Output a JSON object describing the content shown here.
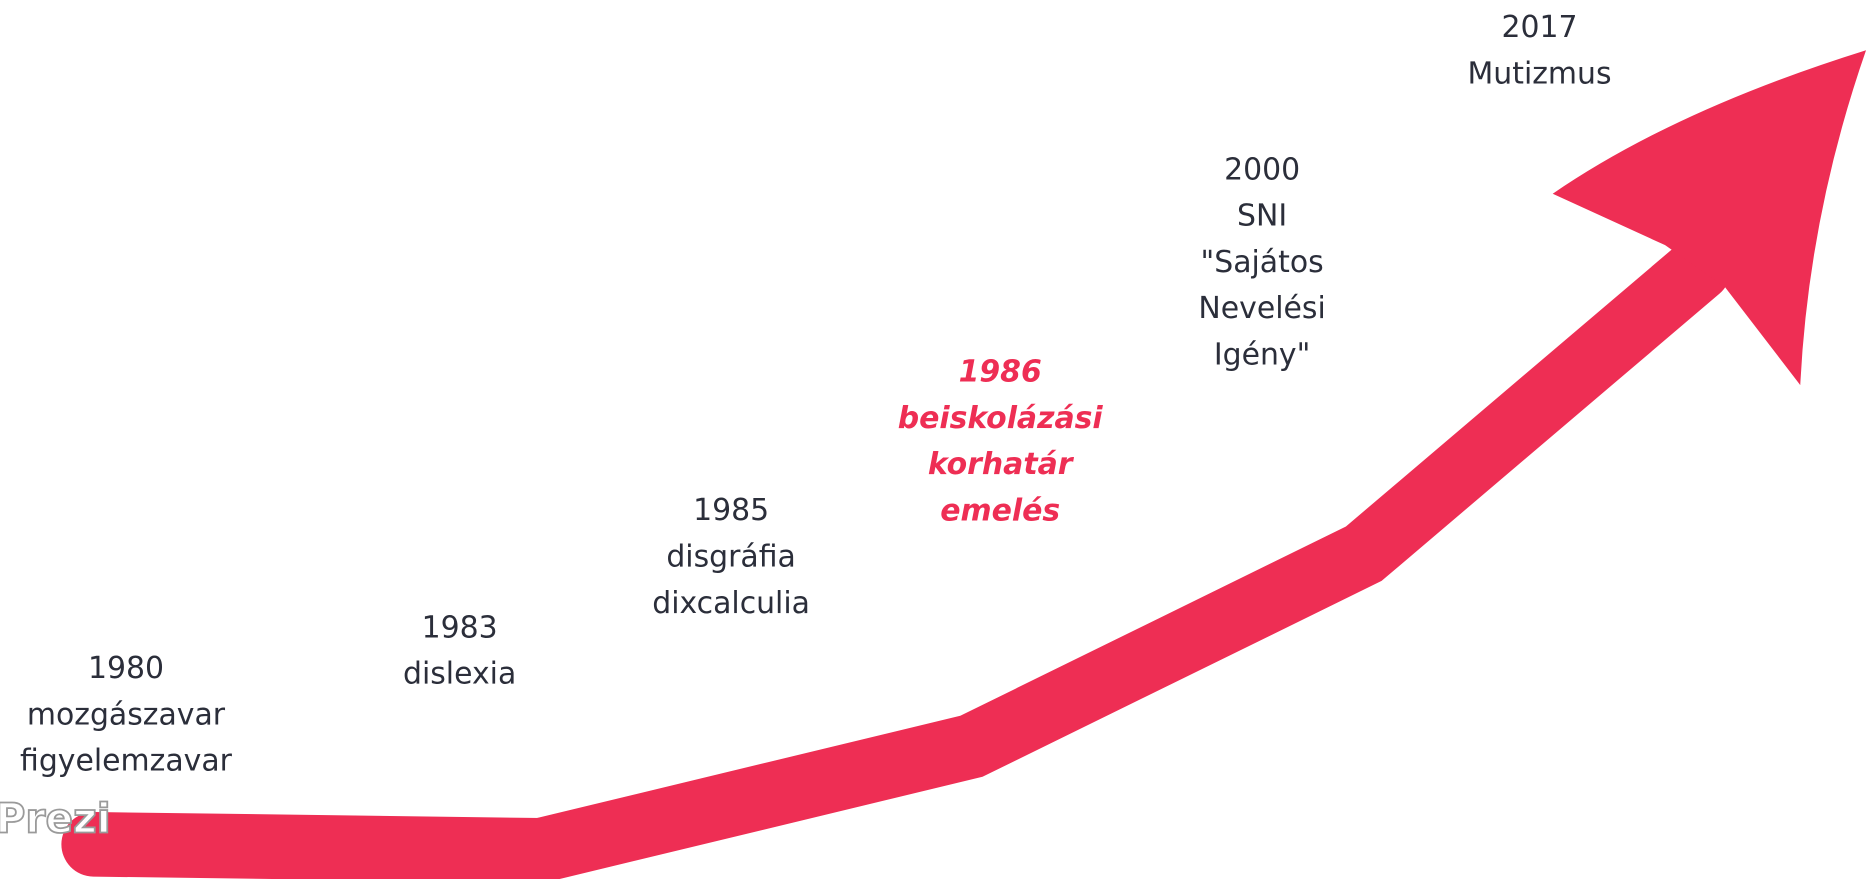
{
  "events": [
    {
      "lines": [
        "1980",
        "mozgászavar",
        "figyelemzavar"
      ]
    },
    {
      "lines": [
        "1983",
        "dislexia"
      ]
    },
    {
      "lines": [
        "1985",
        "disgráfia",
        "dixcalculia"
      ]
    },
    {
      "lines": [
        "1986",
        "beiskolázási",
        "korhatár",
        "emelés"
      ]
    },
    {
      "lines": [
        "2000",
        "SNI",
        "\"Sajátos",
        "Nevelési",
        "Igény\""
      ]
    },
    {
      "lines": [
        "2017",
        "Mutizmus"
      ]
    }
  ],
  "logo": "Prezi"
}
